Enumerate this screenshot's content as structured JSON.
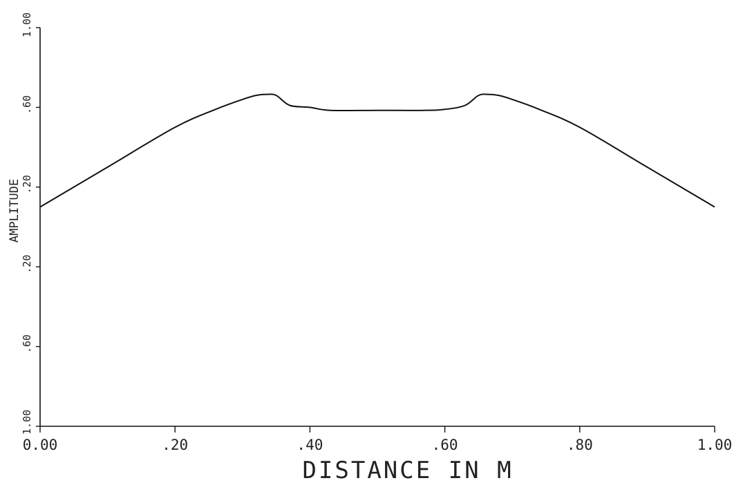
{
  "chart_data": {
    "type": "line",
    "xlabel": "DISTANCE IN M",
    "ylabel": "AMPLITUDE",
    "xlim": [
      0,
      1
    ],
    "ylim": [
      -1,
      1
    ],
    "x_ticks": [
      {
        "value": 0.0,
        "label": "0.00"
      },
      {
        "value": 0.2,
        "label": ".20"
      },
      {
        "value": 0.4,
        "label": ".40"
      },
      {
        "value": 0.6,
        "label": ".60"
      },
      {
        "value": 0.8,
        "label": ".80"
      },
      {
        "value": 1.0,
        "label": "1.00"
      }
    ],
    "y_ticks": [
      {
        "value": 1.0,
        "label": "1.00"
      },
      {
        "value": 0.6,
        "label": ".60"
      },
      {
        "value": 0.2,
        "label": ".20"
      },
      {
        "value": -0.2,
        "label": ".20"
      },
      {
        "value": -0.6,
        "label": ".60"
      },
      {
        "value": -1.0,
        "label": "1.00"
      }
    ],
    "grid": false,
    "series": [
      {
        "color": "#111111",
        "x": [
          0.0,
          0.1,
          0.2,
          0.26,
          0.3,
          0.32,
          0.335,
          0.35,
          0.37,
          0.4,
          0.43,
          0.5,
          0.57,
          0.6,
          0.63,
          0.65,
          0.665,
          0.68,
          0.7,
          0.74,
          0.8,
          0.9,
          1.0
        ],
        "y": [
          0.1,
          0.3,
          0.5,
          0.59,
          0.64,
          0.66,
          0.665,
          0.66,
          0.61,
          0.6,
          0.585,
          0.585,
          0.585,
          0.59,
          0.61,
          0.66,
          0.665,
          0.66,
          0.64,
          0.59,
          0.5,
          0.3,
          0.1
        ]
      }
    ]
  }
}
